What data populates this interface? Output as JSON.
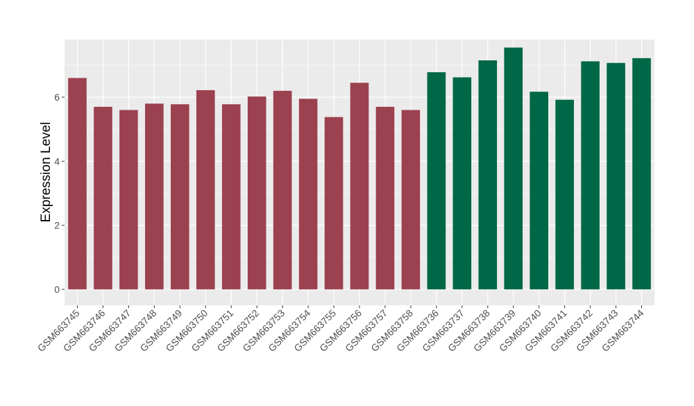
{
  "chart_data": {
    "type": "bar",
    "ylabel": "Expression Level",
    "xlabel": "",
    "ylim": [
      -0.5,
      7.8
    ],
    "yticks": [
      0,
      2,
      4,
      6
    ],
    "grid": true,
    "legend": "none",
    "colors": {
      "group_1": "#9c4150",
      "group_2": "#006747",
      "panel_bg": "#ebebeb",
      "grid": "#ffffff"
    },
    "categories": [
      "GSM663745",
      "GSM663746",
      "GSM663747",
      "GSM663748",
      "GSM663749",
      "GSM663750",
      "GSM663751",
      "GSM663752",
      "GSM663753",
      "GSM663754",
      "GSM663755",
      "GSM663756",
      "GSM663757",
      "GSM663758",
      "GSM663736",
      "GSM663737",
      "GSM663738",
      "GSM663739",
      "GSM663740",
      "GSM663741",
      "GSM663742",
      "GSM663743",
      "GSM663744"
    ],
    "values": [
      6.6,
      5.7,
      5.6,
      5.8,
      5.78,
      6.22,
      5.78,
      6.02,
      6.2,
      5.95,
      5.38,
      6.45,
      5.7,
      5.6,
      6.78,
      6.62,
      7.15,
      7.55,
      6.17,
      5.92,
      7.12,
      7.07,
      7.22
    ],
    "groups": [
      1,
      1,
      1,
      1,
      1,
      1,
      1,
      1,
      1,
      1,
      1,
      1,
      1,
      1,
      2,
      2,
      2,
      2,
      2,
      2,
      2,
      2,
      2
    ]
  }
}
